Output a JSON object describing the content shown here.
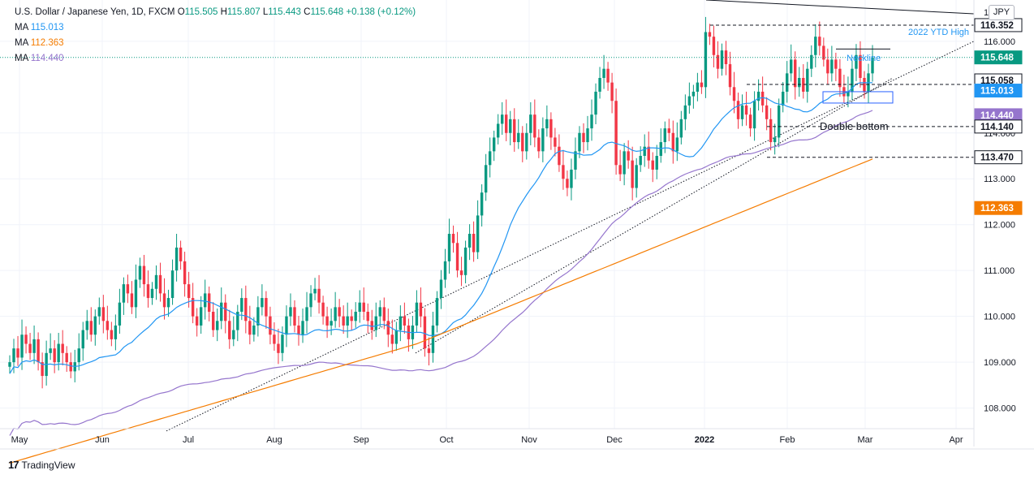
{
  "header": {
    "symbol": "U.S. Dollar / Japanese Yen, 1D, FXCM",
    "open_label": "O",
    "open": "115.505",
    "high_label": "H",
    "high": "115.807",
    "low_label": "L",
    "low": "115.443",
    "close_label": "C",
    "close": "115.648",
    "change": "+0.138 (+0.12%)"
  },
  "ma_legend": [
    {
      "label": "MA",
      "value": "115.013",
      "color": "#2196f3"
    },
    {
      "label": "MA",
      "value": "112.363",
      "color": "#f57c00"
    },
    {
      "label": "MA",
      "value": "114.440",
      "color": "#9575cd"
    }
  ],
  "currency_button": "JPY",
  "footer": {
    "brand": "TradingView",
    "logo": "17"
  },
  "colors": {
    "up": "#089981",
    "down": "#f23645",
    "ma_fast": "#2196f3",
    "ma_mid": "#9575cd",
    "ma_slow": "#f57c00"
  },
  "chart_data": {
    "type": "candlestick",
    "x_labels": [
      "May",
      "Jun",
      "Jul",
      "Aug",
      "Sep",
      "Oct",
      "Nov",
      "Dec",
      "2022",
      "Feb",
      "Mar",
      "Apr"
    ],
    "y_ticks": [
      "108.000",
      "109.000",
      "110.000",
      "111.000",
      "112.000",
      "113.000",
      "114.000",
      "116.000"
    ],
    "ylim": [
      107.55,
      116.9
    ],
    "grid": true,
    "price_tags": [
      {
        "value": 116.352,
        "text": "116.352",
        "style": "outline"
      },
      {
        "value": 115.648,
        "text": "115.648",
        "style": "green"
      },
      {
        "value": 115.058,
        "text": "115.058",
        "style": "outline"
      },
      {
        "value": 115.013,
        "text": "115.013",
        "style": "blue"
      },
      {
        "value": 114.44,
        "text": "114.440",
        "style": "purple"
      },
      {
        "value": 114.14,
        "text": "114.140",
        "style": "outline"
      },
      {
        "value": 113.47,
        "text": "113.470",
        "style": "outline"
      },
      {
        "value": 112.363,
        "text": "112.363",
        "style": "orange"
      }
    ],
    "annotations": [
      {
        "text": "2022 YTD High",
        "color": "#2196f3"
      },
      {
        "text": "Neckline",
        "color": "#2196f3"
      },
      {
        "text": "Double bottom",
        "color": "#131722"
      }
    ],
    "current_price": 115.648,
    "series_close": [
      109.0,
      109.3,
      109.1,
      109.6,
      109.4,
      109.2,
      109.5,
      109.0,
      108.7,
      109.2,
      109.3,
      109.0,
      109.4,
      109.2,
      109.0,
      108.8,
      109.0,
      109.3,
      109.7,
      109.9,
      109.6,
      110.0,
      110.2,
      109.9,
      109.7,
      109.5,
      109.8,
      110.3,
      110.7,
      110.5,
      110.2,
      110.8,
      111.1,
      110.7,
      110.4,
      110.6,
      110.9,
      110.5,
      110.2,
      110.4,
      111.0,
      111.5,
      111.2,
      110.7,
      110.4,
      110.0,
      109.8,
      110.2,
      110.5,
      110.1,
      109.7,
      109.9,
      110.3,
      109.9,
      109.5,
      109.7,
      110.1,
      110.4,
      109.9,
      109.6,
      109.8,
      110.2,
      110.4,
      110.0,
      109.6,
      109.4,
      109.2,
      109.6,
      110.0,
      110.2,
      109.8,
      109.6,
      109.9,
      110.2,
      110.5,
      110.6,
      110.3,
      110.0,
      109.8,
      109.9,
      110.2,
      110.0,
      109.8,
      110.0,
      109.9,
      110.1,
      110.3,
      110.1,
      109.9,
      109.7,
      110.0,
      110.2,
      109.9,
      109.6,
      109.4,
      109.7,
      110.0,
      109.8,
      109.5,
      109.8,
      110.3,
      110.0,
      109.3,
      109.2,
      109.8,
      110.4,
      110.8,
      111.2,
      111.8,
      111.6,
      111.0,
      110.9,
      111.5,
      111.8,
      111.4,
      112.2,
      112.7,
      113.3,
      113.6,
      113.9,
      114.2,
      114.4,
      114.0,
      114.3,
      113.8,
      114.0,
      113.6,
      114.0,
      114.4,
      113.9,
      113.6,
      114.1,
      114.3,
      113.9,
      113.7,
      113.3,
      113.0,
      112.8,
      113.2,
      113.6,
      114.0,
      113.8,
      114.1,
      114.4,
      114.9,
      115.2,
      115.4,
      115.1,
      114.7,
      113.3,
      113.1,
      113.6,
      113.4,
      112.8,
      113.3,
      113.5,
      113.7,
      113.4,
      113.2,
      113.5,
      113.8,
      114.1,
      114.0,
      113.6,
      113.9,
      114.3,
      114.6,
      114.8,
      114.9,
      115.1,
      115.0,
      116.2,
      116.1,
      115.7,
      115.4,
      115.8,
      115.5,
      115.0,
      114.7,
      114.3,
      114.6,
      114.4,
      114.1,
      114.7,
      114.9,
      114.6,
      114.3,
      113.8,
      113.9,
      114.6,
      114.9,
      115.3,
      115.6,
      115.0,
      115.2,
      114.9,
      115.4,
      115.7,
      116.1,
      115.9,
      115.6,
      115.3,
      115.6,
      115.4,
      115.0,
      114.8,
      114.9,
      115.4,
      115.7,
      115.2,
      114.9,
      115.3,
      115.648
    ]
  }
}
